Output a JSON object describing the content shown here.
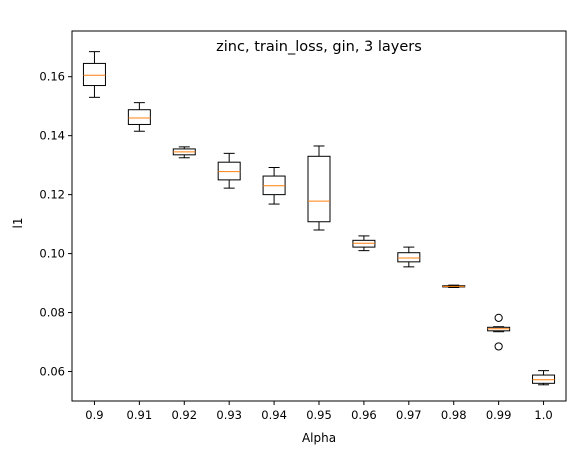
{
  "chart_data": {
    "type": "box",
    "title": "zinc, train_loss, gin, 3 layers",
    "xlabel": "Alpha",
    "ylabel": "l1",
    "ylim": [
      0.05,
      0.1755
    ],
    "yticks": [
      "0.06",
      "0.08",
      "0.10",
      "0.12",
      "0.14",
      "0.16"
    ],
    "grid": false,
    "colors": {
      "box": "#000000",
      "median": "#ff7f0e",
      "flier": "#000000"
    },
    "categories": [
      "0.9",
      "0.91",
      "0.92",
      "0.93",
      "0.94",
      "0.95",
      "0.96",
      "0.97",
      "0.98",
      "0.99",
      "1.0"
    ],
    "boxes": [
      {
        "whislo": 0.153,
        "q1": 0.157,
        "med": 0.1605,
        "q3": 0.1645,
        "whishi": 0.1685,
        "fliers": []
      },
      {
        "whislo": 0.1415,
        "q1": 0.1438,
        "med": 0.146,
        "q3": 0.1488,
        "whishi": 0.1512,
        "fliers": []
      },
      {
        "whislo": 0.1325,
        "q1": 0.1335,
        "med": 0.1345,
        "q3": 0.1355,
        "whishi": 0.1362,
        "fliers": []
      },
      {
        "whislo": 0.1222,
        "q1": 0.125,
        "med": 0.1278,
        "q3": 0.131,
        "whishi": 0.134,
        "fliers": []
      },
      {
        "whislo": 0.1168,
        "q1": 0.12,
        "med": 0.123,
        "q3": 0.1263,
        "whishi": 0.1292,
        "fliers": []
      },
      {
        "whislo": 0.108,
        "q1": 0.1108,
        "med": 0.1178,
        "q3": 0.133,
        "whishi": 0.1365,
        "fliers": []
      },
      {
        "whislo": 0.101,
        "q1": 0.1022,
        "med": 0.1035,
        "q3": 0.1045,
        "whishi": 0.106,
        "fliers": []
      },
      {
        "whislo": 0.0955,
        "q1": 0.0972,
        "med": 0.0985,
        "q3": 0.1003,
        "whishi": 0.1022,
        "fliers": []
      },
      {
        "whislo": 0.0885,
        "q1": 0.0887,
        "med": 0.0889,
        "q3": 0.0891,
        "whishi": 0.0893,
        "fliers": []
      },
      {
        "whislo": 0.0735,
        "q1": 0.0738,
        "med": 0.0745,
        "q3": 0.075,
        "whishi": 0.0752,
        "fliers": [
          0.0782,
          0.0685
        ]
      },
      {
        "whislo": 0.0555,
        "q1": 0.056,
        "med": 0.0572,
        "q3": 0.0588,
        "whishi": 0.0603,
        "fliers": []
      }
    ]
  }
}
